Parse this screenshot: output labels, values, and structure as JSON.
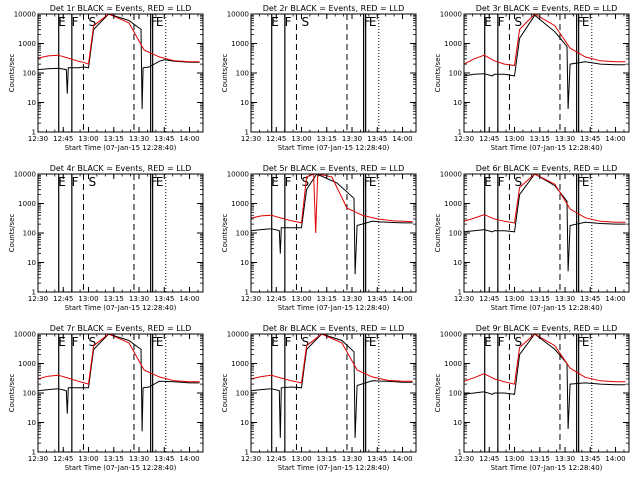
{
  "chart_data": {
    "type": "line",
    "x_ticks": [
      "12:30",
      "12:45",
      "13:00",
      "13:15",
      "13:30",
      "13:45",
      "14:00"
    ],
    "y_ticks": [
      "1",
      "10",
      "100",
      "1000",
      "10000"
    ],
    "y_scale": "log",
    "ylim": [
      1,
      10000
    ],
    "xlim": [
      "12:30",
      "14:08"
    ],
    "xlabel": "Start Time (07-Jan-15 12:28:40)",
    "ylabel": "Counts/sec",
    "grid": false,
    "colors": {
      "events": "#000000",
      "lld": "#e00000"
    },
    "panels": [
      {
        "title": "Det 1r BLACK = Events, RED = LLD",
        "has_data": true,
        "markers": [
          {
            "t": "12:42",
            "label": "E"
          },
          {
            "t": "12:50",
            "label": "F"
          },
          {
            "t": "13:00",
            "label": "S"
          },
          {
            "t": "13:37",
            "label": "F"
          },
          {
            "t": "13:40",
            "label": "E"
          }
        ],
        "events": [
          [
            12.5,
            130
          ],
          [
            12.6,
            140
          ],
          [
            12.7,
            145
          ],
          [
            12.78,
            130
          ],
          [
            12.79,
            20
          ],
          [
            12.8,
            150
          ],
          [
            12.9,
            150
          ],
          [
            12.95,
            160
          ],
          [
            13.0,
            150
          ],
          [
            13.05,
            3000
          ],
          [
            13.2,
            12000
          ],
          [
            13.4,
            6000
          ],
          [
            13.52,
            3000
          ],
          [
            13.53,
            6
          ],
          [
            13.54,
            150
          ],
          [
            13.6,
            160
          ],
          [
            13.7,
            250
          ],
          [
            13.75,
            280
          ],
          [
            13.85,
            250
          ],
          [
            14.0,
            230
          ],
          [
            14.1,
            230
          ]
        ],
        "lld": [
          [
            12.5,
            320
          ],
          [
            12.6,
            380
          ],
          [
            12.7,
            400
          ],
          [
            12.8,
            320
          ],
          [
            12.9,
            250
          ],
          [
            12.95,
            230
          ],
          [
            13.0,
            200
          ],
          [
            13.05,
            4000
          ],
          [
            13.2,
            12000
          ],
          [
            13.4,
            5000
          ],
          [
            13.55,
            600
          ],
          [
            13.7,
            350
          ],
          [
            13.85,
            260
          ],
          [
            14.0,
            240
          ],
          [
            14.1,
            240
          ]
        ]
      },
      {
        "title": "Det 2r BLACK = Events, RED = LLD",
        "has_data": false,
        "markers": [
          {
            "t": "12:42",
            "label": "E"
          },
          {
            "t": "12:50",
            "label": "F"
          },
          {
            "t": "13:00",
            "label": "S"
          },
          {
            "t": "13:37",
            "label": "F"
          },
          {
            "t": "13:40",
            "label": "E"
          }
        ],
        "events": [],
        "lld": []
      },
      {
        "title": "Det 3r BLACK = Events, RED = LLD",
        "has_data": true,
        "markers": [
          {
            "t": "12:42",
            "label": "E"
          },
          {
            "t": "12:50",
            "label": "F"
          },
          {
            "t": "13:00",
            "label": "S"
          },
          {
            "t": "13:37",
            "label": "F"
          },
          {
            "t": "13:40",
            "label": "E"
          }
        ],
        "events": [
          [
            12.5,
            80
          ],
          [
            12.6,
            90
          ],
          [
            12.7,
            95
          ],
          [
            12.78,
            80
          ],
          [
            12.8,
            90
          ],
          [
            12.9,
            90
          ],
          [
            13.0,
            80
          ],
          [
            13.05,
            1500
          ],
          [
            13.2,
            9000
          ],
          [
            13.4,
            2500
          ],
          [
            13.52,
            800
          ],
          [
            13.53,
            6
          ],
          [
            13.55,
            200
          ],
          [
            13.7,
            240
          ],
          [
            13.85,
            200
          ],
          [
            14.0,
            190
          ],
          [
            14.1,
            190
          ]
        ],
        "lld": [
          [
            12.5,
            200
          ],
          [
            12.6,
            300
          ],
          [
            12.7,
            400
          ],
          [
            12.8,
            260
          ],
          [
            12.9,
            200
          ],
          [
            13.0,
            180
          ],
          [
            13.05,
            3000
          ],
          [
            13.2,
            12000
          ],
          [
            13.4,
            4000
          ],
          [
            13.55,
            700
          ],
          [
            13.7,
            350
          ],
          [
            13.85,
            260
          ],
          [
            14.0,
            240
          ],
          [
            14.1,
            240
          ]
        ]
      },
      {
        "title": "Det 4r BLACK = Events, RED = LLD",
        "has_data": false,
        "markers": [
          {
            "t": "12:42",
            "label": "E"
          },
          {
            "t": "12:50",
            "label": "F"
          },
          {
            "t": "13:00",
            "label": "S"
          },
          {
            "t": "13:37",
            "label": "F"
          },
          {
            "t": "13:40",
            "label": "E"
          }
        ],
        "events": [],
        "lld": []
      },
      {
        "title": "Det 5r BLACK = Events, RED = LLD",
        "has_data": true,
        "markers": [
          {
            "t": "12:42",
            "label": "E"
          },
          {
            "t": "12:50",
            "label": "F"
          },
          {
            "t": "13:00",
            "label": "S"
          },
          {
            "t": "13:37",
            "label": "F"
          },
          {
            "t": "13:40",
            "label": "E"
          }
        ],
        "events": [
          [
            12.5,
            120
          ],
          [
            12.6,
            130
          ],
          [
            12.7,
            140
          ],
          [
            12.78,
            120
          ],
          [
            12.79,
            20
          ],
          [
            12.8,
            150
          ],
          [
            12.9,
            150
          ],
          [
            13.0,
            150
          ],
          [
            13.05,
            3000
          ],
          [
            13.15,
            12000
          ],
          [
            13.35,
            5000
          ],
          [
            13.52,
            1500
          ],
          [
            13.53,
            4
          ],
          [
            13.55,
            180
          ],
          [
            13.7,
            250
          ],
          [
            13.85,
            230
          ],
          [
            14.0,
            220
          ],
          [
            14.1,
            220
          ]
        ],
        "lld": [
          [
            12.5,
            320
          ],
          [
            12.6,
            380
          ],
          [
            12.7,
            400
          ],
          [
            12.8,
            320
          ],
          [
            12.9,
            260
          ],
          [
            13.0,
            220
          ],
          [
            13.05,
            8000
          ],
          [
            13.12,
            12000
          ],
          [
            13.14,
            100
          ],
          [
            13.16,
            12000
          ],
          [
            13.3,
            8000
          ],
          [
            13.45,
            700
          ],
          [
            13.6,
            400
          ],
          [
            13.75,
            300
          ],
          [
            13.9,
            260
          ],
          [
            14.1,
            240
          ]
        ]
      },
      {
        "title": "Det 6r BLACK = Events, RED = LLD",
        "has_data": true,
        "markers": [
          {
            "t": "12:42",
            "label": "E"
          },
          {
            "t": "12:50",
            "label": "F"
          },
          {
            "t": "13:00",
            "label": "S"
          },
          {
            "t": "13:37",
            "label": "F"
          },
          {
            "t": "13:40",
            "label": "E"
          }
        ],
        "events": [
          [
            12.5,
            110
          ],
          [
            12.6,
            120
          ],
          [
            12.7,
            130
          ],
          [
            12.78,
            110
          ],
          [
            12.8,
            120
          ],
          [
            12.9,
            120
          ],
          [
            13.0,
            110
          ],
          [
            13.05,
            2000
          ],
          [
            13.2,
            10000
          ],
          [
            13.4,
            4000
          ],
          [
            13.52,
            1200
          ],
          [
            13.53,
            5
          ],
          [
            13.55,
            180
          ],
          [
            13.7,
            230
          ],
          [
            13.85,
            210
          ],
          [
            14.0,
            200
          ],
          [
            14.1,
            200
          ]
        ],
        "lld": [
          [
            12.5,
            250
          ],
          [
            12.6,
            320
          ],
          [
            12.7,
            420
          ],
          [
            12.8,
            300
          ],
          [
            12.9,
            250
          ],
          [
            13.0,
            220
          ],
          [
            13.05,
            3500
          ],
          [
            13.2,
            12000
          ],
          [
            13.4,
            4500
          ],
          [
            13.55,
            650
          ],
          [
            13.7,
            330
          ],
          [
            13.85,
            250
          ],
          [
            14.0,
            230
          ],
          [
            14.1,
            230
          ]
        ]
      },
      {
        "title": "Det 7r BLACK = Events, RED = LLD",
        "has_data": true,
        "markers": [
          {
            "t": "12:42",
            "label": "E"
          },
          {
            "t": "12:50",
            "label": "F"
          },
          {
            "t": "13:00",
            "label": "S"
          },
          {
            "t": "13:37",
            "label": "F"
          },
          {
            "t": "13:40",
            "label": "E"
          }
        ],
        "events": [
          [
            12.5,
            120
          ],
          [
            12.6,
            130
          ],
          [
            12.7,
            140
          ],
          [
            12.78,
            120
          ],
          [
            12.79,
            20
          ],
          [
            12.8,
            150
          ],
          [
            12.9,
            150
          ],
          [
            13.0,
            150
          ],
          [
            13.05,
            3000
          ],
          [
            13.2,
            12000
          ],
          [
            13.4,
            6000
          ],
          [
            13.52,
            3000
          ],
          [
            13.53,
            5
          ],
          [
            13.54,
            150
          ],
          [
            13.6,
            160
          ],
          [
            13.7,
            250
          ],
          [
            13.85,
            240
          ],
          [
            14.0,
            220
          ],
          [
            14.1,
            220
          ]
        ],
        "lld": [
          [
            12.5,
            300
          ],
          [
            12.6,
            370
          ],
          [
            12.7,
            400
          ],
          [
            12.8,
            320
          ],
          [
            12.9,
            250
          ],
          [
            13.0,
            200
          ],
          [
            13.05,
            4000
          ],
          [
            13.2,
            12000
          ],
          [
            13.4,
            5000
          ],
          [
            13.55,
            600
          ],
          [
            13.7,
            350
          ],
          [
            13.85,
            260
          ],
          [
            14.0,
            240
          ],
          [
            14.1,
            240
          ]
        ]
      },
      {
        "title": "Det 8r BLACK = Events, RED = LLD",
        "has_data": true,
        "markers": [
          {
            "t": "12:42",
            "label": "E"
          },
          {
            "t": "12:50",
            "label": "F"
          },
          {
            "t": "13:00",
            "label": "S"
          },
          {
            "t": "13:37",
            "label": "F"
          },
          {
            "t": "13:40",
            "label": "E"
          }
        ],
        "events": [
          [
            12.5,
            120
          ],
          [
            12.6,
            130
          ],
          [
            12.7,
            140
          ],
          [
            12.78,
            120
          ],
          [
            12.79,
            3
          ],
          [
            12.8,
            150
          ],
          [
            12.9,
            160
          ],
          [
            13.0,
            150
          ],
          [
            13.05,
            3000
          ],
          [
            13.2,
            12000
          ],
          [
            13.4,
            6000
          ],
          [
            13.52,
            2500
          ],
          [
            13.53,
            3
          ],
          [
            13.55,
            180
          ],
          [
            13.7,
            260
          ],
          [
            13.85,
            250
          ],
          [
            14.0,
            230
          ],
          [
            14.1,
            230
          ]
        ],
        "lld": [
          [
            12.5,
            300
          ],
          [
            12.6,
            360
          ],
          [
            12.7,
            400
          ],
          [
            12.8,
            320
          ],
          [
            12.9,
            260
          ],
          [
            13.0,
            220
          ],
          [
            13.05,
            4000
          ],
          [
            13.2,
            12000
          ],
          [
            13.4,
            5000
          ],
          [
            13.55,
            600
          ],
          [
            13.7,
            350
          ],
          [
            13.85,
            270
          ],
          [
            14.0,
            250
          ],
          [
            14.1,
            250
          ]
        ]
      },
      {
        "title": "Det 9r BLACK = Events, RED = LLD",
        "has_data": true,
        "markers": [
          {
            "t": "12:42",
            "label": "E"
          },
          {
            "t": "12:50",
            "label": "F"
          },
          {
            "t": "13:00",
            "label": "S"
          },
          {
            "t": "13:37",
            "label": "F"
          },
          {
            "t": "13:40",
            "label": "E"
          }
        ],
        "events": [
          [
            12.5,
            90
          ],
          [
            12.6,
            100
          ],
          [
            12.7,
            110
          ],
          [
            12.78,
            90
          ],
          [
            12.8,
            100
          ],
          [
            12.9,
            100
          ],
          [
            13.0,
            90
          ],
          [
            13.05,
            2000
          ],
          [
            13.2,
            10000
          ],
          [
            13.4,
            3000
          ],
          [
            13.52,
            1000
          ],
          [
            13.53,
            6
          ],
          [
            13.55,
            200
          ],
          [
            13.7,
            220
          ],
          [
            13.85,
            200
          ],
          [
            14.0,
            190
          ],
          [
            14.1,
            190
          ]
        ],
        "lld": [
          [
            12.5,
            250
          ],
          [
            12.6,
            330
          ],
          [
            12.7,
            450
          ],
          [
            12.8,
            300
          ],
          [
            12.9,
            240
          ],
          [
            13.0,
            200
          ],
          [
            13.05,
            3500
          ],
          [
            13.2,
            12000
          ],
          [
            13.4,
            4000
          ],
          [
            13.55,
            700
          ],
          [
            13.7,
            340
          ],
          [
            13.85,
            260
          ],
          [
            14.0,
            240
          ],
          [
            14.1,
            240
          ]
        ]
      }
    ]
  }
}
